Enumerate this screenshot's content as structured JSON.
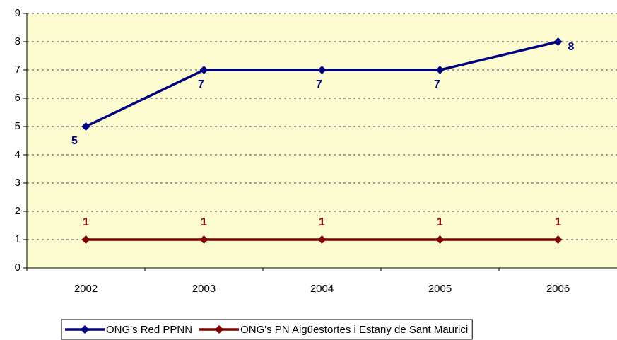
{
  "chart_data": {
    "type": "line",
    "categories": [
      "2002",
      "2003",
      "2004",
      "2005",
      "2006"
    ],
    "series": [
      {
        "name": "ONG's Red PPNN",
        "color": "#000080",
        "values": [
          5,
          7,
          7,
          7,
          8
        ]
      },
      {
        "name": "ONG's PN Aigüestortes i Estany de Sant Maurici",
        "color": "#800000",
        "values": [
          1,
          1,
          1,
          1,
          1
        ]
      }
    ],
    "ylim": [
      0,
      9
    ],
    "yticks": [
      0,
      1,
      2,
      3,
      4,
      5,
      6,
      7,
      8,
      9
    ],
    "grid": true,
    "legend": "bottom"
  }
}
